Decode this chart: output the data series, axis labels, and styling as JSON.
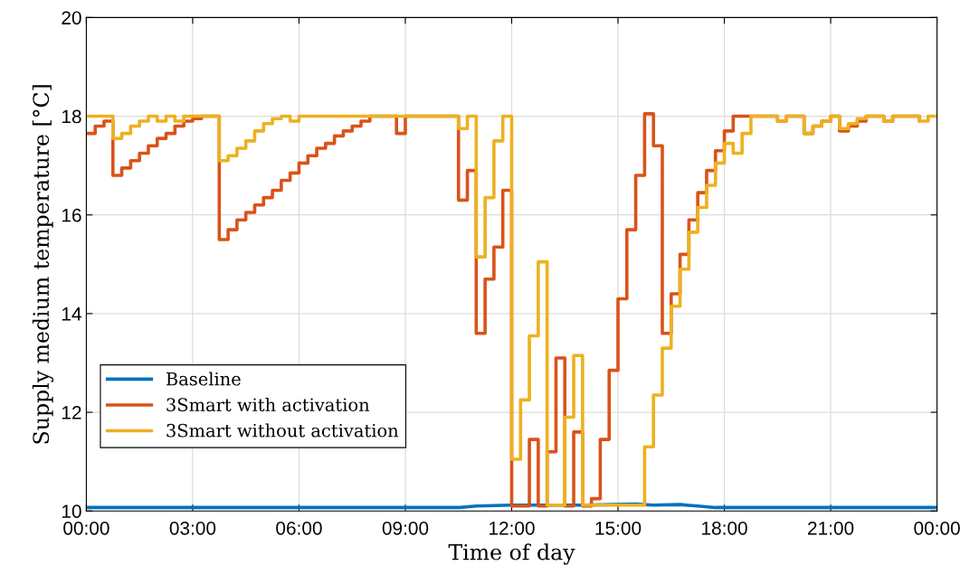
{
  "chart_data": {
    "type": "step",
    "xlabel": "Time of day",
    "ylabel": "Supply medium temperature [°C]",
    "xlim": [
      0,
      24
    ],
    "xticks": [
      {
        "value": 0,
        "label": "00:00"
      },
      {
        "value": 3,
        "label": "03:00"
      },
      {
        "value": 6,
        "label": "06:00"
      },
      {
        "value": 9,
        "label": "09:00"
      },
      {
        "value": 12,
        "label": "12:00"
      },
      {
        "value": 15,
        "label": "15:00"
      },
      {
        "value": 18,
        "label": "18:00"
      },
      {
        "value": 21,
        "label": "21:00"
      },
      {
        "value": 24,
        "label": "00:00"
      }
    ],
    "ylim": [
      10,
      20
    ],
    "yticks": [
      10,
      12,
      14,
      16,
      18,
      20
    ],
    "grid": true,
    "legend": "lower left",
    "series": [
      {
        "name": "Baseline",
        "type": "line",
        "color": "#0072bd",
        "x": [
          0,
          10.5,
          11.0,
          12.0,
          14.0,
          15.5,
          16.0,
          16.75,
          17.25,
          17.75,
          24
        ],
        "values": [
          10.07,
          10.07,
          10.1,
          10.12,
          10.12,
          10.14,
          10.12,
          10.13,
          10.1,
          10.07,
          10.07
        ]
      },
      {
        "name": "3Smart with activation",
        "color": "#d95319",
        "x": [
          0,
          0.25,
          0.5,
          0.75,
          1.0,
          1.25,
          1.5,
          1.75,
          2.0,
          2.25,
          2.5,
          2.75,
          3.0,
          3.25,
          3.75,
          4.0,
          4.25,
          4.5,
          4.75,
          5.0,
          5.25,
          5.5,
          5.75,
          6.0,
          6.25,
          6.5,
          6.75,
          7.0,
          7.25,
          7.5,
          7.75,
          8.0,
          8.75,
          9.0,
          10.5,
          10.75,
          11.0,
          11.25,
          11.5,
          11.75,
          12.0,
          12.5,
          12.75,
          13.0,
          13.25,
          13.5,
          13.75,
          14.0,
          14.25,
          14.5,
          14.75,
          15.0,
          15.25,
          15.5,
          15.75,
          16.0,
          16.25,
          16.5,
          16.75,
          17.0,
          17.25,
          17.5,
          17.75,
          18.0,
          18.25,
          19.5,
          19.75,
          20.25,
          20.5,
          20.75,
          21.0,
          21.25,
          21.5,
          21.75,
          22.0,
          22.5,
          22.75,
          23.5
        ],
        "values": [
          17.65,
          17.8,
          17.9,
          16.8,
          16.95,
          17.1,
          17.25,
          17.4,
          17.55,
          17.65,
          17.8,
          17.9,
          17.95,
          18,
          15.5,
          15.7,
          15.9,
          16.05,
          16.2,
          16.35,
          16.5,
          16.7,
          16.85,
          17.05,
          17.2,
          17.35,
          17.45,
          17.6,
          17.7,
          17.8,
          17.9,
          18,
          17.65,
          18,
          16.3,
          16.9,
          13.6,
          14.7,
          15.35,
          16.5,
          10.1,
          11.45,
          10.1,
          11.2,
          13.1,
          10.1,
          11.6,
          10.1,
          10.25,
          11.45,
          12.85,
          14.3,
          15.7,
          16.8,
          18.05,
          17.4,
          13.6,
          14.4,
          15.2,
          15.9,
          16.45,
          16.9,
          17.3,
          17.7,
          18,
          17.9,
          18,
          17.65,
          17.8,
          17.9,
          18,
          17.7,
          17.8,
          17.9,
          18,
          17.9,
          18,
          17.9
        ]
      },
      {
        "name": "3Smart without activation",
        "color": "#edb120",
        "x": [
          0,
          0.75,
          1.0,
          1.25,
          1.5,
          1.75,
          2.0,
          2.25,
          2.5,
          2.75,
          3.75,
          4.0,
          4.25,
          4.5,
          4.75,
          5.0,
          5.25,
          5.5,
          5.75,
          6.0,
          10.5,
          10.75,
          11.0,
          11.25,
          11.5,
          11.75,
          12.0,
          12.25,
          12.5,
          12.75,
          13.0,
          13.5,
          13.75,
          14.0,
          15.75,
          16.0,
          16.25,
          16.5,
          16.75,
          17.0,
          17.25,
          17.5,
          17.75,
          18.0,
          18.25,
          18.5,
          18.75,
          19.5,
          19.75,
          20.25,
          20.5,
          20.75,
          21.0,
          21.25,
          21.5,
          21.75,
          22.0,
          22.5,
          22.75,
          23.5,
          23.75,
          24
        ],
        "values": [
          18,
          17.55,
          17.65,
          17.8,
          17.9,
          18,
          17.9,
          18,
          17.9,
          18,
          17.1,
          17.2,
          17.35,
          17.5,
          17.7,
          17.85,
          17.95,
          18,
          17.9,
          18,
          17.75,
          18,
          15.15,
          16.35,
          17.5,
          18,
          11.05,
          12.25,
          13.55,
          15.05,
          10.12,
          11.9,
          13.15,
          10.12,
          11.3,
          12.35,
          13.3,
          14.15,
          14.9,
          15.65,
          16.15,
          16.6,
          17.05,
          17.45,
          17.25,
          17.65,
          18,
          17.9,
          18,
          17.65,
          17.8,
          17.9,
          18,
          17.75,
          17.85,
          17.95,
          18,
          17.9,
          18,
          17.9,
          18,
          18
        ]
      }
    ]
  }
}
